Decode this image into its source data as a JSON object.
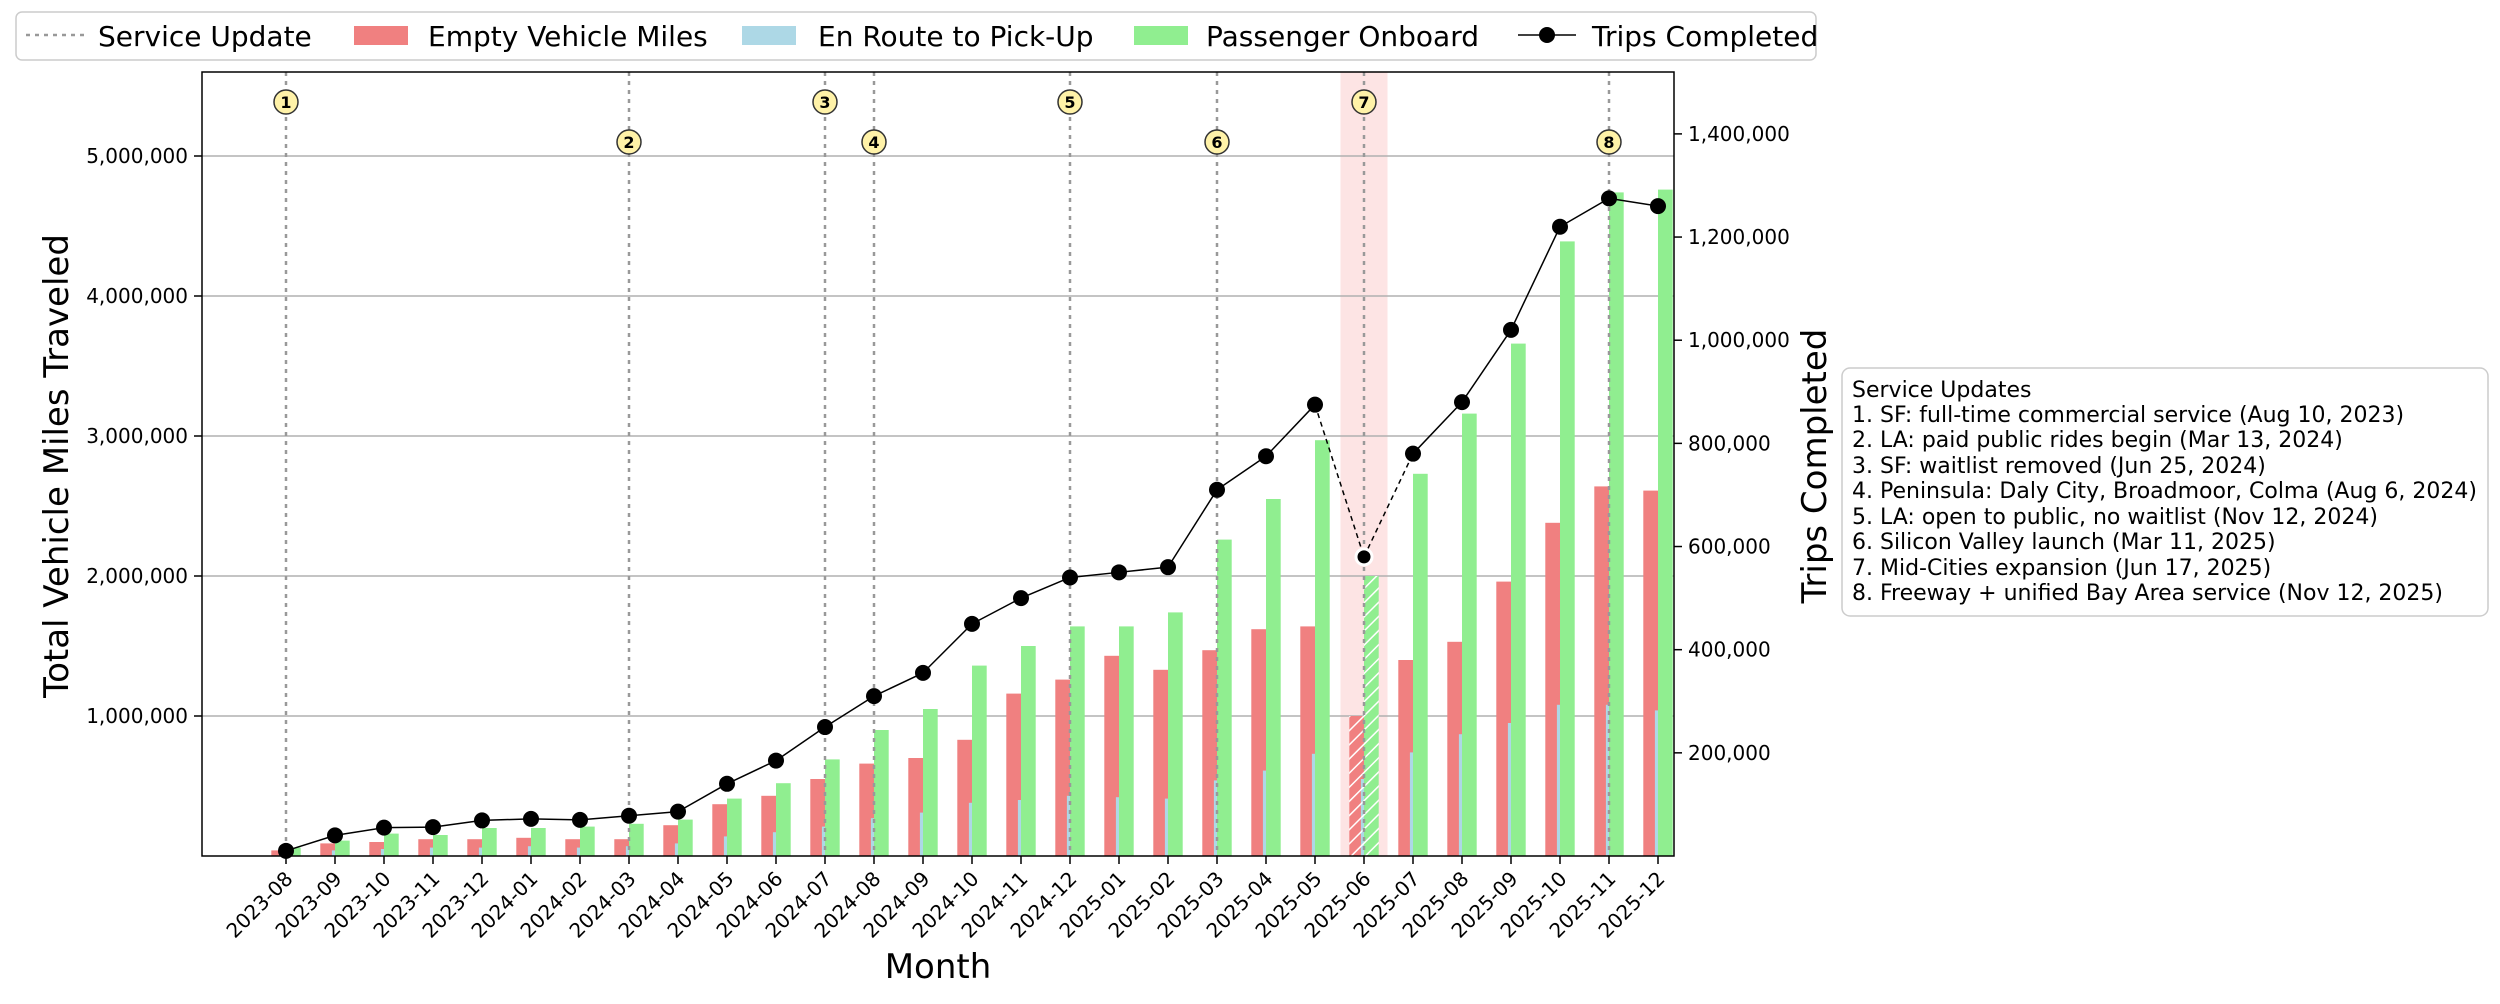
{
  "chart_data": {
    "type": "bar",
    "xlabel": "Month",
    "ylabel": "Total Vehicle Miles Traveled",
    "y2label": "Trips Completed",
    "ylim": [
      0,
      5600000
    ],
    "y2lim": [
      0,
      1520000
    ],
    "yticks": [
      1000000,
      2000000,
      3000000,
      4000000,
      5000000
    ],
    "ytick_labels": [
      "1,000,000",
      "2,000,000",
      "3,000,000",
      "4,000,000",
      "5,000,000"
    ],
    "y2ticks": [
      200000,
      400000,
      600000,
      800000,
      1000000,
      1200000,
      1400000
    ],
    "y2tick_labels": [
      "200,000",
      "400,000",
      "600,000",
      "800,000",
      "1,000,000",
      "1,200,000",
      "1,400,000"
    ],
    "grid": "horizontal",
    "legend_placement": "top",
    "categories": [
      "2023-08",
      "2023-09",
      "2023-10",
      "2023-11",
      "2023-12",
      "2024-01",
      "2024-02",
      "2024-03",
      "2024-04",
      "2024-05",
      "2024-06",
      "2024-07",
      "2024-08",
      "2024-09",
      "2024-10",
      "2024-11",
      "2024-12",
      "2025-01",
      "2025-02",
      "2025-03",
      "2025-04",
      "2025-05",
      "2025-06",
      "2025-07",
      "2025-08",
      "2025-09",
      "2025-10",
      "2025-11",
      "2025-12"
    ],
    "series": [
      {
        "name": "Empty Vehicle Miles",
        "kind": "bar",
        "axis": "left",
        "color": "#f08080",
        "values": [
          40000,
          90000,
          100000,
          120000,
          120000,
          130000,
          120000,
          120000,
          220000,
          370000,
          430000,
          550000,
          660000,
          700000,
          830000,
          1160000,
          1260000,
          1430000,
          1330000,
          1470000,
          1620000,
          1640000,
          1000000,
          1400000,
          1530000,
          1960000,
          2380000,
          2640000,
          2610000
        ]
      },
      {
        "name": "En Route to Pick-Up",
        "kind": "bar",
        "axis": "left",
        "color": "#add8e6",
        "values": [
          20000,
          40000,
          50000,
          60000,
          60000,
          70000,
          60000,
          70000,
          90000,
          140000,
          170000,
          210000,
          270000,
          310000,
          380000,
          400000,
          430000,
          420000,
          410000,
          540000,
          610000,
          730000,
          550000,
          740000,
          870000,
          950000,
          1080000,
          1080000,
          1040000
        ]
      },
      {
        "name": "Passenger Onboard",
        "kind": "bar",
        "axis": "left",
        "color": "#90ee90",
        "values": [
          60000,
          110000,
          160000,
          150000,
          200000,
          200000,
          210000,
          230000,
          260000,
          410000,
          520000,
          690000,
          900000,
          1050000,
          1360000,
          1500000,
          1640000,
          1640000,
          1740000,
          2260000,
          2550000,
          2970000,
          2000000,
          2730000,
          3160000,
          3660000,
          4390000,
          4740000,
          4760000
        ]
      },
      {
        "name": "Trips Completed",
        "kind": "line",
        "axis": "right",
        "color": "#000000",
        "values": [
          10000,
          40000,
          55000,
          56000,
          69000,
          72000,
          70000,
          78000,
          86000,
          140000,
          185000,
          250000,
          310000,
          355000,
          450000,
          500000,
          540000,
          550000,
          560000,
          710000,
          775000,
          875000,
          580000,
          780000,
          880000,
          1020000,
          1220000,
          1275000,
          1260000
        ]
      }
    ],
    "service_update_series_name": "Service Update",
    "service_updates": [
      {
        "num": "1",
        "month": "2023-08"
      },
      {
        "num": "2",
        "month": "2024-03"
      },
      {
        "num": "3",
        "month": "2024-07"
      },
      {
        "num": "4",
        "month": "2024-08"
      },
      {
        "num": "5",
        "month": "2024-12"
      },
      {
        "num": "6",
        "month": "2025-03"
      },
      {
        "num": "7",
        "month": "2025-06"
      },
      {
        "num": "8",
        "month": "2025-11"
      }
    ],
    "highlight_month": "2025-06",
    "service_updates_box": {
      "title": "Service Updates",
      "lines": [
        "1. SF: full-time commercial service (Aug 10, 2023)",
        "2. LA: paid public rides begin (Mar 13, 2024)",
        "3. SF: waitlist removed (Jun 25, 2024)",
        "4. Peninsula: Daly City, Broadmoor, Colma (Aug 6, 2024)",
        "5. LA: open to public, no waitlist (Nov 12, 2024)",
        "6. Silicon Valley launch (Mar 11, 2025)",
        "7. Mid-Cities expansion (Jun 17, 2025)",
        "8. Freeway + unified Bay Area service (Nov 12, 2025)"
      ]
    }
  },
  "colors": {
    "empty_miles": "#f08080",
    "en_route": "#add8e6",
    "onboard": "#90ee90",
    "trips_line": "#000000",
    "marker_fill": "#fff2a8",
    "highlight": "#fde4e4",
    "grid": "#b0b0b0"
  }
}
